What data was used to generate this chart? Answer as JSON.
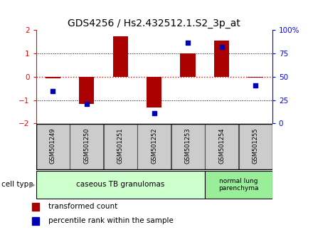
{
  "title": "GDS4256 / Hs2.432512.1.S2_3p_at",
  "samples": [
    "GSM501249",
    "GSM501250",
    "GSM501251",
    "GSM501252",
    "GSM501253",
    "GSM501254",
    "GSM501255"
  ],
  "bar_values": [
    -0.05,
    -1.15,
    1.75,
    -1.3,
    1.02,
    1.55,
    -0.02
  ],
  "dot_values": [
    -0.6,
    -1.15,
    null,
    -1.55,
    1.45,
    1.28,
    -0.38
  ],
  "ylim": [
    -2,
    2
  ],
  "y_ticks": [
    -2,
    -1,
    0,
    1,
    2
  ],
  "y2_ticks": [
    0,
    25,
    50,
    75,
    100
  ],
  "bar_color": "#aa0000",
  "dot_color": "#0000bb",
  "group1_label": "caseous TB granulomas",
  "group2_label": "normal lung\nparenchyma",
  "group1_indices": [
    0,
    1,
    2,
    3,
    4
  ],
  "group2_indices": [
    5,
    6
  ],
  "group1_color": "#ccffcc",
  "group2_color": "#99ee99",
  "cell_type_label": "cell type",
  "legend_bar_label": "transformed count",
  "legend_dot_label": "percentile rank within the sample",
  "title_fontsize": 10,
  "tick_fontsize": 7.5,
  "bar_width": 0.45
}
